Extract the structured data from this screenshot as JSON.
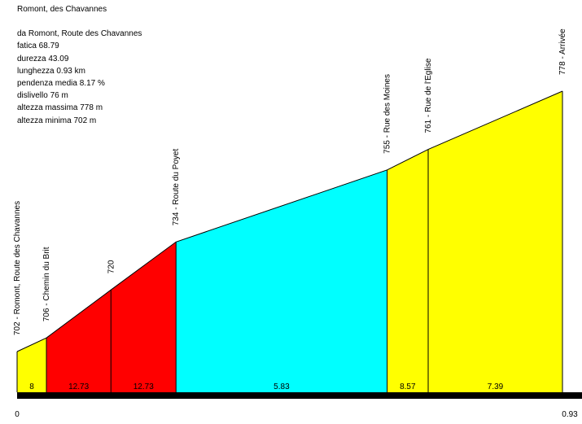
{
  "title": "Romont, des Chavannes",
  "stats": [
    "da Romont, Route des Chavannes",
    "fatica 68.79",
    "durezza 43.09",
    "lunghezza 0.93 km",
    "pendenza media 8.17 %",
    "dislivello 76 m",
    "altezza massima 778 m",
    "altezza minima 702 m"
  ],
  "chart_data": {
    "type": "area",
    "title": "Romont, des Chavannes",
    "xlabel": "",
    "ylabel": "",
    "x_ticks": [
      "0",
      "0.93"
    ],
    "xlim": [
      0,
      0.93
    ],
    "ylim": [
      702,
      778
    ],
    "points": [
      {
        "x": 0.0,
        "y": 702,
        "label": "702 - Romont, Route des Chavannes"
      },
      {
        "x": 0.05,
        "y": 706,
        "label": "706 - Chemin du Brit"
      },
      {
        "x": 0.16,
        "y": 720,
        "label": "720"
      },
      {
        "x": 0.271,
        "y": 734,
        "label": "734 - Route du Poyet"
      },
      {
        "x": 0.631,
        "y": 755,
        "label": "755 - Rue des Moines"
      },
      {
        "x": 0.701,
        "y": 761,
        "label": "761 - Rue de l'Eglise"
      },
      {
        "x": 0.93,
        "y": 778,
        "label": "778 - Arrivée"
      }
    ],
    "segments": [
      {
        "gradient": "8",
        "color": "#ffff00"
      },
      {
        "gradient": "12.73",
        "color": "#ff0000"
      },
      {
        "gradient": "12.73",
        "color": "#ff0000"
      },
      {
        "gradient": "5.83",
        "color": "#00ffff"
      },
      {
        "gradient": "8.57",
        "color": "#ffff00"
      },
      {
        "gradient": "7.39",
        "color": "#ffff00"
      }
    ],
    "grid": false,
    "legend": "none"
  }
}
